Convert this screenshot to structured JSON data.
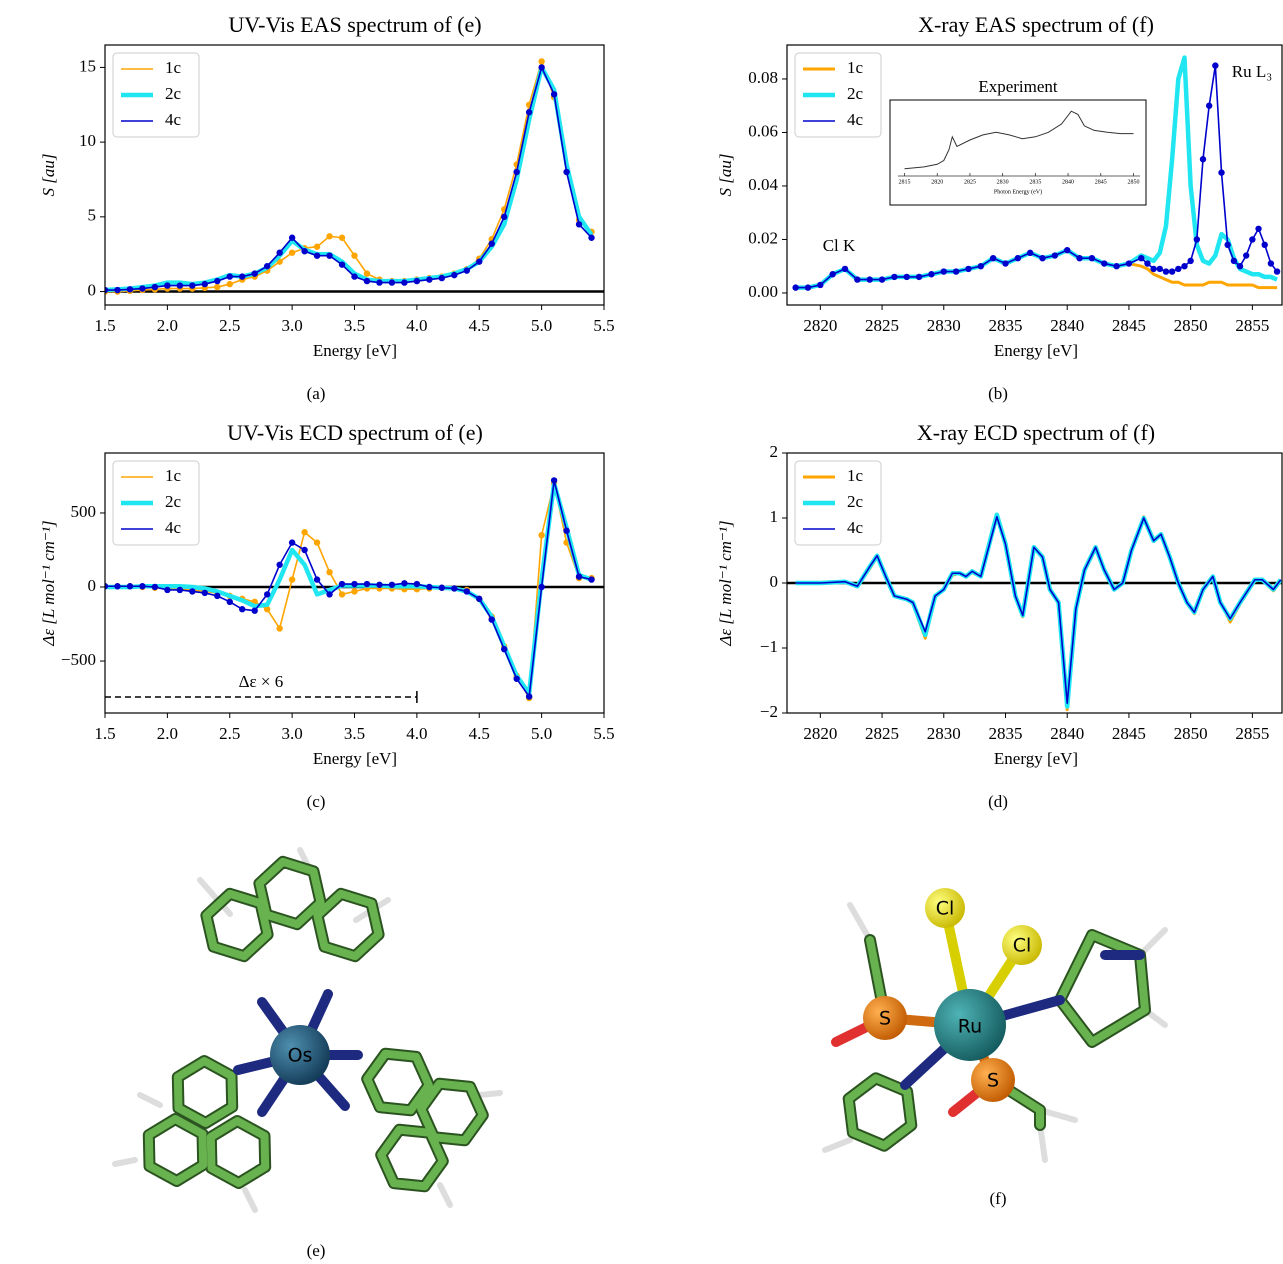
{
  "chart_data": [
    {
      "type": "line",
      "title": "UV-Vis EAS spectrum of (e)",
      "xlabel": "Energy [eV]",
      "ylabel": "S [au]",
      "xlim": [
        1.5,
        5.5
      ],
      "ylim": [
        -0.9,
        16.5
      ],
      "xticks": [
        1.5,
        {
          "value": 2,
          "label": "2.0"
        },
        2.5,
        {
          "value": 3,
          "label": "3.0"
        },
        3.5,
        {
          "value": 4,
          "label": "4.0"
        },
        4.5,
        {
          "value": 5,
          "label": "5.0"
        },
        5.5
      ],
      "yticks": [
        0,
        5,
        10,
        15
      ],
      "zero_line": true,
      "legend": "upper left",
      "x": [
        1.5,
        1.6,
        1.7,
        1.8,
        1.9,
        2.0,
        2.1,
        2.2,
        2.3,
        2.4,
        2.5,
        2.6,
        2.7,
        2.8,
        2.9,
        3.0,
        3.1,
        3.2,
        3.3,
        3.4,
        3.5,
        3.6,
        3.7,
        3.8,
        3.9,
        4.0,
        4.1,
        4.2,
        4.3,
        4.4,
        4.5,
        4.6,
        4.7,
        4.8,
        4.9,
        5.0,
        5.1,
        5.2,
        5.3,
        5.4
      ],
      "series": [
        {
          "name": "1c",
          "color": "#ffa500",
          "width": 1.6,
          "markers": true,
          "values": [
            0.0,
            0.0,
            0.05,
            0.1,
            0.15,
            0.2,
            0.2,
            0.2,
            0.25,
            0.3,
            0.5,
            0.8,
            1.0,
            1.4,
            2.0,
            2.6,
            2.9,
            3.0,
            3.7,
            3.6,
            2.4,
            1.2,
            0.8,
            0.7,
            0.7,
            0.8,
            0.9,
            1.0,
            1.2,
            1.5,
            2.2,
            3.5,
            5.5,
            8.5,
            12.5,
            15.4,
            13.0,
            8.0,
            4.8,
            4.0
          ]
        },
        {
          "name": "2c",
          "color": "#1fe6f0",
          "width": 4.5,
          "markers": false,
          "values": [
            0.1,
            0.15,
            0.2,
            0.3,
            0.4,
            0.6,
            0.6,
            0.5,
            0.6,
            0.8,
            1.1,
            1.0,
            1.2,
            1.6,
            2.4,
            3.4,
            2.8,
            2.5,
            2.5,
            2.0,
            1.2,
            0.8,
            0.7,
            0.7,
            0.7,
            0.8,
            0.9,
            1.0,
            1.2,
            1.5,
            2.0,
            3.0,
            4.5,
            7.5,
            11.5,
            15.0,
            13.5,
            8.5,
            5.0,
            3.8
          ]
        },
        {
          "name": "4c",
          "color": "#0000cd",
          "width": 1.6,
          "markers": true,
          "values": [
            0.1,
            0.1,
            0.15,
            0.2,
            0.3,
            0.4,
            0.4,
            0.4,
            0.5,
            0.7,
            1.0,
            1.0,
            1.2,
            1.7,
            2.6,
            3.6,
            2.7,
            2.4,
            2.4,
            1.8,
            1.0,
            0.7,
            0.6,
            0.6,
            0.6,
            0.7,
            0.8,
            0.9,
            1.1,
            1.4,
            2.0,
            3.2,
            5.0,
            8.0,
            12.0,
            15.0,
            13.2,
            8.0,
            4.5,
            3.6
          ]
        }
      ]
    },
    {
      "type": "line",
      "title": "X-ray EAS spectrum of (f)",
      "xlabel": "Energy [eV]",
      "ylabel": "S [au]",
      "xlim": [
        2817.3,
        2857.4
      ],
      "ylim": [
        -0.0045,
        0.0927
      ],
      "xticks": [
        2820,
        2825,
        2830,
        2835,
        2840,
        2845,
        2850,
        2855
      ],
      "yticks": [
        {
          "value": 0,
          "label": "0.00"
        },
        {
          "value": 0.02,
          "label": "0.02"
        },
        {
          "value": 0.04,
          "label": "0.04"
        },
        {
          "value": 0.06,
          "label": "0.06"
        },
        {
          "value": 0.08,
          "label": "0.08"
        }
      ],
      "zero_line": false,
      "legend": "upper left",
      "annotations": [
        "Cl K",
        "Ru L₃"
      ],
      "x": [
        2818,
        2819,
        2820,
        2821,
        2822,
        2823,
        2824,
        2825,
        2826,
        2827,
        2828,
        2829,
        2830,
        2831,
        2832,
        2833,
        2834,
        2835,
        2836,
        2837,
        2838,
        2839,
        2840,
        2841,
        2842,
        2843,
        2844,
        2845,
        2846,
        2846.5,
        2847,
        2847.5,
        2848,
        2848.5,
        2849,
        2849.5,
        2850,
        2850.5,
        2851,
        2851.5,
        2852,
        2852.5,
        2853,
        2853.5,
        2854,
        2854.5,
        2855,
        2855.5,
        2856,
        2856.5,
        2857
      ],
      "series": [
        {
          "name": "1c",
          "color": "#ffa500",
          "width": 3,
          "markers": false,
          "values": [
            0.002,
            0.002,
            0.003,
            0.007,
            0.009,
            0.005,
            0.005,
            0.005,
            0.006,
            0.006,
            0.006,
            0.007,
            0.008,
            0.008,
            0.009,
            0.01,
            0.013,
            0.011,
            0.013,
            0.015,
            0.013,
            0.014,
            0.016,
            0.013,
            0.013,
            0.011,
            0.01,
            0.011,
            0.01,
            0.009,
            0.007,
            0.006,
            0.005,
            0.004,
            0.004,
            0.003,
            0.003,
            0.003,
            0.003,
            0.004,
            0.004,
            0.004,
            0.003,
            0.003,
            0.003,
            0.003,
            0.003,
            0.002,
            0.002,
            0.002,
            0.002
          ]
        },
        {
          "name": "2c",
          "color": "#1fe6f0",
          "width": 4.5,
          "markers": false,
          "values": [
            0.002,
            0.002,
            0.003,
            0.007,
            0.009,
            0.005,
            0.005,
            0.005,
            0.006,
            0.006,
            0.006,
            0.007,
            0.008,
            0.008,
            0.009,
            0.01,
            0.013,
            0.011,
            0.013,
            0.015,
            0.013,
            0.014,
            0.016,
            0.013,
            0.013,
            0.011,
            0.01,
            0.011,
            0.014,
            0.013,
            0.012,
            0.015,
            0.025,
            0.05,
            0.08,
            0.088,
            0.04,
            0.018,
            0.012,
            0.011,
            0.014,
            0.022,
            0.02,
            0.013,
            0.009,
            0.008,
            0.007,
            0.007,
            0.006,
            0.006,
            0.005
          ]
        },
        {
          "name": "4c",
          "color": "#0000cd",
          "width": 1.6,
          "markers": true,
          "values": [
            0.002,
            0.002,
            0.003,
            0.007,
            0.009,
            0.005,
            0.005,
            0.005,
            0.006,
            0.006,
            0.006,
            0.007,
            0.008,
            0.008,
            0.009,
            0.01,
            0.013,
            0.011,
            0.013,
            0.015,
            0.013,
            0.014,
            0.016,
            0.013,
            0.013,
            0.011,
            0.01,
            0.011,
            0.013,
            0.011,
            0.009,
            0.009,
            0.008,
            0.008,
            0.009,
            0.01,
            0.012,
            0.02,
            0.05,
            0.07,
            0.085,
            0.045,
            0.018,
            0.012,
            0.01,
            0.014,
            0.02,
            0.024,
            0.018,
            0.011,
            0.008
          ]
        }
      ],
      "inset": {
        "title": "Experiment",
        "xlabel": "Photon Energy (eV)",
        "xlim": [
          2814,
          2851
        ],
        "ylim": [
          0,
          1
        ],
        "xticks": [
          2815,
          2820,
          2825,
          2830,
          2835,
          2840,
          2845,
          2850
        ],
        "x": [
          2815,
          2818,
          2820,
          2821,
          2821.8,
          2822.3,
          2823,
          2825,
          2827,
          2829,
          2831,
          2833,
          2835,
          2837,
          2839,
          2840.5,
          2841.5,
          2842.5,
          2844,
          2846,
          2848,
          2850
        ],
        "values": [
          0.05,
          0.08,
          0.12,
          0.18,
          0.35,
          0.55,
          0.4,
          0.5,
          0.58,
          0.62,
          0.58,
          0.52,
          0.55,
          0.62,
          0.75,
          0.95,
          0.9,
          0.72,
          0.65,
          0.62,
          0.6,
          0.6
        ]
      }
    },
    {
      "type": "line",
      "title": "UV-Vis ECD spectrum of (e)",
      "xlabel": "Energy [eV]",
      "ylabel": "Δε [L mol⁻¹ cm⁻¹]",
      "xlim": [
        1.5,
        5.5
      ],
      "ylim": [
        -851,
        905
      ],
      "xticks": [
        1.5,
        {
          "value": 2,
          "label": "2.0"
        },
        2.5,
        {
          "value": 3,
          "label": "3.0"
        },
        3.5,
        {
          "value": 4,
          "label": "4.0"
        },
        4.5,
        {
          "value": 5,
          "label": "5.0"
        },
        5.5
      ],
      "yticks": [
        {
          "value": -500,
          "label": "−500"
        },
        0,
        500
      ],
      "zero_line": true,
      "legend": "upper left",
      "bracket": {
        "label": "Δε × 6",
        "x": [
          1.5,
          4.0
        ]
      },
      "x": [
        1.5,
        1.6,
        1.7,
        1.8,
        1.9,
        2.0,
        2.1,
        2.2,
        2.3,
        2.4,
        2.5,
        2.6,
        2.7,
        2.8,
        2.9,
        3.0,
        3.1,
        3.2,
        3.3,
        3.4,
        3.5,
        3.6,
        3.7,
        3.8,
        3.9,
        4.0,
        4.1,
        4.2,
        4.3,
        4.4,
        4.5,
        4.6,
        4.7,
        4.8,
        4.9,
        5.0,
        5.1,
        5.2,
        5.3,
        5.4
      ],
      "series": [
        {
          "name": "1c",
          "color": "#ffa500",
          "width": 1.6,
          "markers": true,
          "values": [
            5,
            5,
            5,
            0,
            -5,
            -10,
            -15,
            -20,
            -30,
            -40,
            -60,
            -80,
            -100,
            -150,
            -280,
            50,
            370,
            300,
            100,
            -50,
            -30,
            -10,
            -10,
            -10,
            -15,
            -15,
            -10,
            -5,
            -10,
            -20,
            -80,
            -200,
            -400,
            -600,
            -750,
            350,
            700,
            300,
            60,
            60
          ]
        },
        {
          "name": "2c",
          "color": "#1fe6f0",
          "width": 4.5,
          "markers": false,
          "values": [
            0,
            0,
            0,
            5,
            5,
            5,
            5,
            0,
            -10,
            -30,
            -60,
            -90,
            -130,
            -120,
            50,
            250,
            150,
            -50,
            -20,
            10,
            10,
            10,
            10,
            5,
            5,
            5,
            0,
            -5,
            -10,
            -30,
            -80,
            -200,
            -400,
            -600,
            -720,
            50,
            700,
            400,
            80,
            50
          ]
        },
        {
          "name": "4c",
          "color": "#0000cd",
          "width": 1.6,
          "markers": true,
          "values": [
            5,
            5,
            5,
            5,
            0,
            -20,
            -20,
            -30,
            -40,
            -60,
            -100,
            -150,
            -160,
            -50,
            150,
            300,
            250,
            50,
            -50,
            20,
            20,
            20,
            15,
            15,
            25,
            20,
            0,
            -5,
            -10,
            -30,
            -80,
            -220,
            -420,
            -620,
            -740,
            0,
            720,
            380,
            70,
            50
          ]
        }
      ]
    },
    {
      "type": "line",
      "title": "X-ray ECD spectrum of (f)",
      "xlabel": "Energy [eV]",
      "ylabel": "Δε [L mol⁻¹ cm⁻¹]",
      "xlim": [
        2817.3,
        2857.4
      ],
      "ylim": [
        -2,
        2
      ],
      "xticks": [
        2820,
        2825,
        2830,
        2835,
        2840,
        2845,
        2850,
        2855
      ],
      "yticks": [
        {
          "value": -2,
          "label": "−2"
        },
        {
          "value": -1,
          "label": "−1"
        },
        0,
        1,
        2
      ],
      "zero_line": true,
      "legend": "upper left",
      "x": [
        2818,
        2820,
        2822,
        2823,
        2824,
        2824.6,
        2825.3,
        2826,
        2827,
        2827.5,
        2828.5,
        2829.3,
        2830,
        2830.7,
        2831.3,
        2831.8,
        2832.3,
        2833,
        2834.3,
        2835,
        2835.8,
        2836.4,
        2837.3,
        2838,
        2838.6,
        2839.3,
        2840,
        2840.7,
        2841.4,
        2842.3,
        2843,
        2843.8,
        2844.5,
        2845.2,
        2846.2,
        2847,
        2847.6,
        2848.3,
        2849,
        2849.7,
        2850.3,
        2851,
        2851.8,
        2852.4,
        2853.2,
        2854,
        2855.2,
        2855.8,
        2856.7,
        2857.3
      ],
      "series": [
        {
          "name": "1c",
          "color": "#ffa500",
          "width": 3,
          "markers": false,
          "values": [
            0.0,
            0.0,
            0.02,
            -0.05,
            0.22,
            0.4,
            0.12,
            -0.2,
            -0.25,
            -0.32,
            -0.85,
            -0.22,
            -0.1,
            0.12,
            0.15,
            0.1,
            0.16,
            0.1,
            1.0,
            0.62,
            -0.18,
            -0.52,
            0.52,
            0.42,
            -0.1,
            -0.32,
            -1.95,
            -0.42,
            0.18,
            0.52,
            0.22,
            -0.1,
            0.0,
            0.48,
            1.02,
            0.68,
            0.72,
            0.42,
            0.02,
            -0.3,
            -0.47,
            -0.12,
            0.1,
            -0.28,
            -0.6,
            -0.32,
            0.03,
            0.05,
            -0.12,
            0.03
          ]
        },
        {
          "name": "2c",
          "color": "#1fe6f0",
          "width": 4.5,
          "markers": false,
          "values": [
            0.0,
            0.0,
            0.02,
            -0.05,
            0.25,
            0.42,
            0.1,
            -0.2,
            -0.25,
            -0.3,
            -0.8,
            -0.2,
            -0.1,
            0.15,
            0.15,
            0.1,
            0.18,
            0.1,
            1.05,
            0.6,
            -0.2,
            -0.5,
            0.55,
            0.4,
            -0.1,
            -0.3,
            -1.9,
            -0.4,
            0.2,
            0.55,
            0.2,
            -0.1,
            0.0,
            0.5,
            1.0,
            0.65,
            0.75,
            0.4,
            0.0,
            -0.3,
            -0.45,
            -0.1,
            0.1,
            -0.3,
            -0.55,
            -0.3,
            0.05,
            0.05,
            -0.1,
            0.05
          ]
        },
        {
          "name": "4c",
          "color": "#0000cd",
          "width": 1.6,
          "markers": false,
          "values": [
            0.0,
            0.0,
            0.02,
            -0.05,
            0.25,
            0.42,
            0.1,
            -0.2,
            -0.25,
            -0.3,
            -0.75,
            -0.2,
            -0.1,
            0.15,
            0.15,
            0.1,
            0.18,
            0.1,
            1.02,
            0.6,
            -0.2,
            -0.5,
            0.55,
            0.4,
            -0.1,
            -0.3,
            -1.85,
            -0.4,
            0.2,
            0.55,
            0.2,
            -0.1,
            0.0,
            0.5,
            1.0,
            0.65,
            0.75,
            0.4,
            0.0,
            -0.3,
            -0.45,
            -0.1,
            0.1,
            -0.3,
            -0.55,
            -0.3,
            0.05,
            0.05,
            -0.1,
            0.05
          ]
        }
      ]
    }
  ],
  "captions": [
    "(a)",
    "(b)",
    "(c)",
    "(d)",
    "(e)",
    "(f)"
  ],
  "molecules": [
    {
      "labels": [
        "Os"
      ]
    },
    {
      "labels": [
        "Ru",
        "Cl",
        "Cl",
        "S",
        "S"
      ]
    }
  ]
}
